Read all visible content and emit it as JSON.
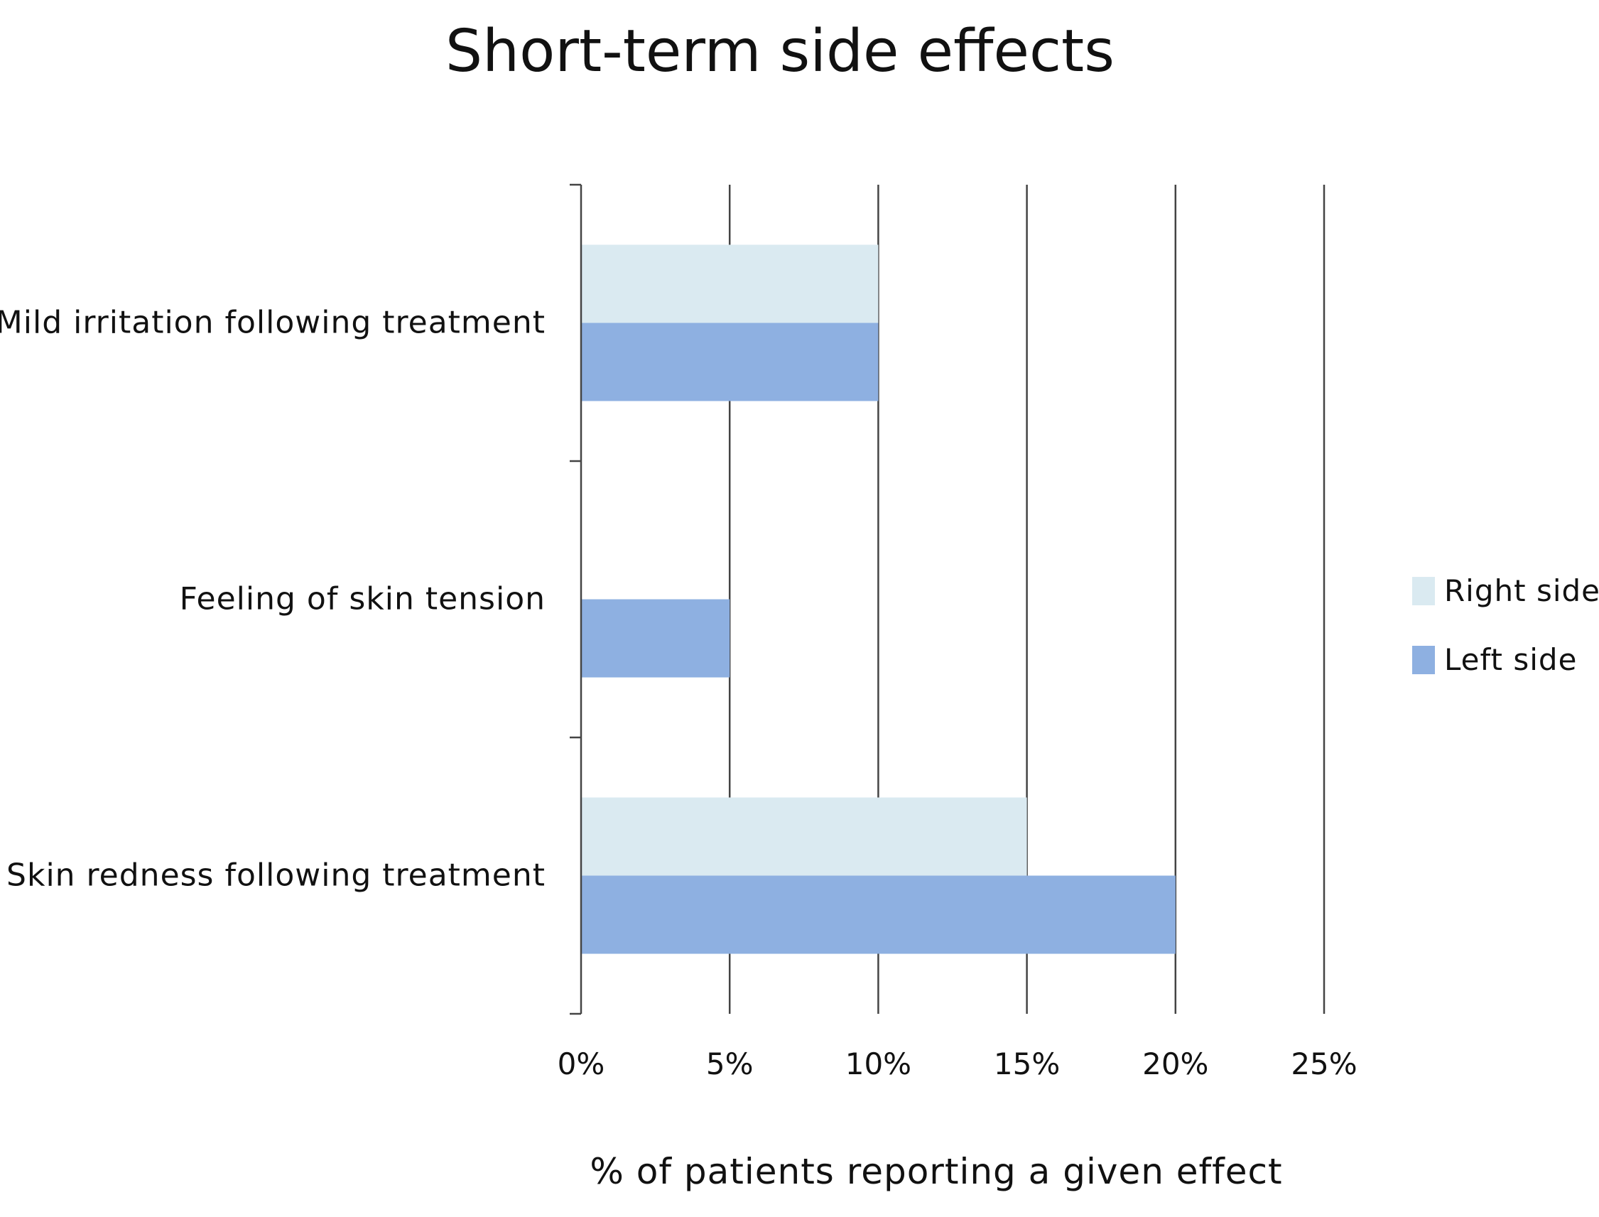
{
  "chart_data": {
    "type": "bar",
    "orientation": "horizontal",
    "title": "Short-term side effects",
    "xlabel": "% of patients reporting a given effect",
    "ylabel": "",
    "categories": [
      "Mild irritation following treatment",
      "Feeling of skin tension",
      "Skin redness following treatment"
    ],
    "series": [
      {
        "name": "Right side",
        "color": "#daeaf1",
        "values": [
          10,
          0,
          15
        ]
      },
      {
        "name": "Left side",
        "color": "#8eb0e1",
        "values": [
          10,
          5,
          20
        ]
      }
    ],
    "xlim": [
      0,
      25
    ],
    "xticks": [
      0,
      5,
      10,
      15,
      20,
      25
    ],
    "tick_labels": [
      "0%",
      "5%",
      "10%",
      "15%",
      "20%",
      "25%"
    ],
    "grid": "vertical",
    "legend_position": "right"
  }
}
